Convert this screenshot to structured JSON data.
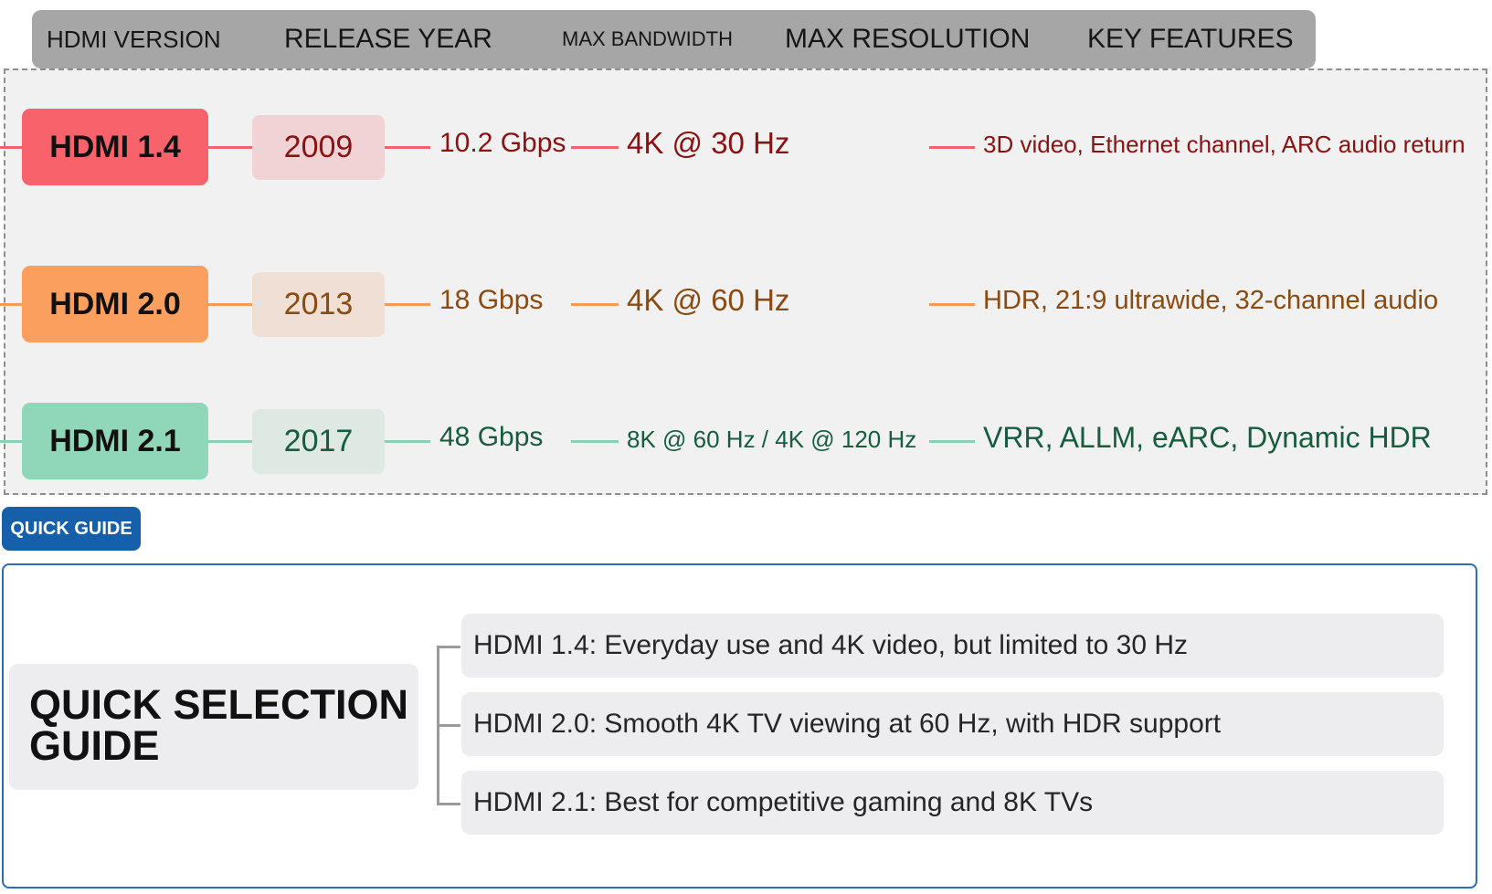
{
  "header": {
    "version": "HDMI VERSION",
    "release_year": "RELEASE YEAR",
    "max_bandwidth": "MAX BANDWIDTH",
    "max_resolution": "MAX RESOLUTION",
    "key_features": "KEY FEATURES"
  },
  "rows": [
    {
      "version": "HDMI 1.4",
      "year": "2009",
      "bandwidth": "10.2 Gbps",
      "resolution": "4K @ 30 Hz",
      "features": "3D video, Ethernet channel, ARC audio return",
      "accent": "#f7626b",
      "year_bg": "#f2d3d5",
      "text_color": "#8a1212",
      "line_color": "#f0636b"
    },
    {
      "version": "HDMI 2.0",
      "year": "2013",
      "bandwidth": "18 Gbps",
      "resolution": "4K @ 60 Hz",
      "features": "HDR, 21:9 ultrawide, 32-channel audio",
      "accent": "#fa9f5e",
      "year_bg": "#f0dfd4",
      "text_color": "#8a4a10",
      "line_color": "#f49b5c"
    },
    {
      "version": "HDMI 2.1",
      "year": "2017",
      "bandwidth": "48 Gbps",
      "resolution": "8K @ 60 Hz / 4K @ 120 Hz",
      "features": "VRR, ALLM, eARC, Dynamic HDR",
      "accent": "#90d6b8",
      "year_bg": "#dde9e2",
      "text_color": "#175c3e",
      "line_color": "#8dcfb3"
    }
  ],
  "guide": {
    "tag": "QUICK GUIDE",
    "title": "QUICK SELECTION GUIDE",
    "items": [
      "HDMI 1.4: Everyday use and 4K video, but limited to 30 Hz",
      "HDMI 2.0: Smooth 4K TV viewing at 60 Hz, with HDR support",
      "HDMI 2.1: Best for competitive gaming and 8K TVs"
    ],
    "accent": "#1560a8"
  }
}
